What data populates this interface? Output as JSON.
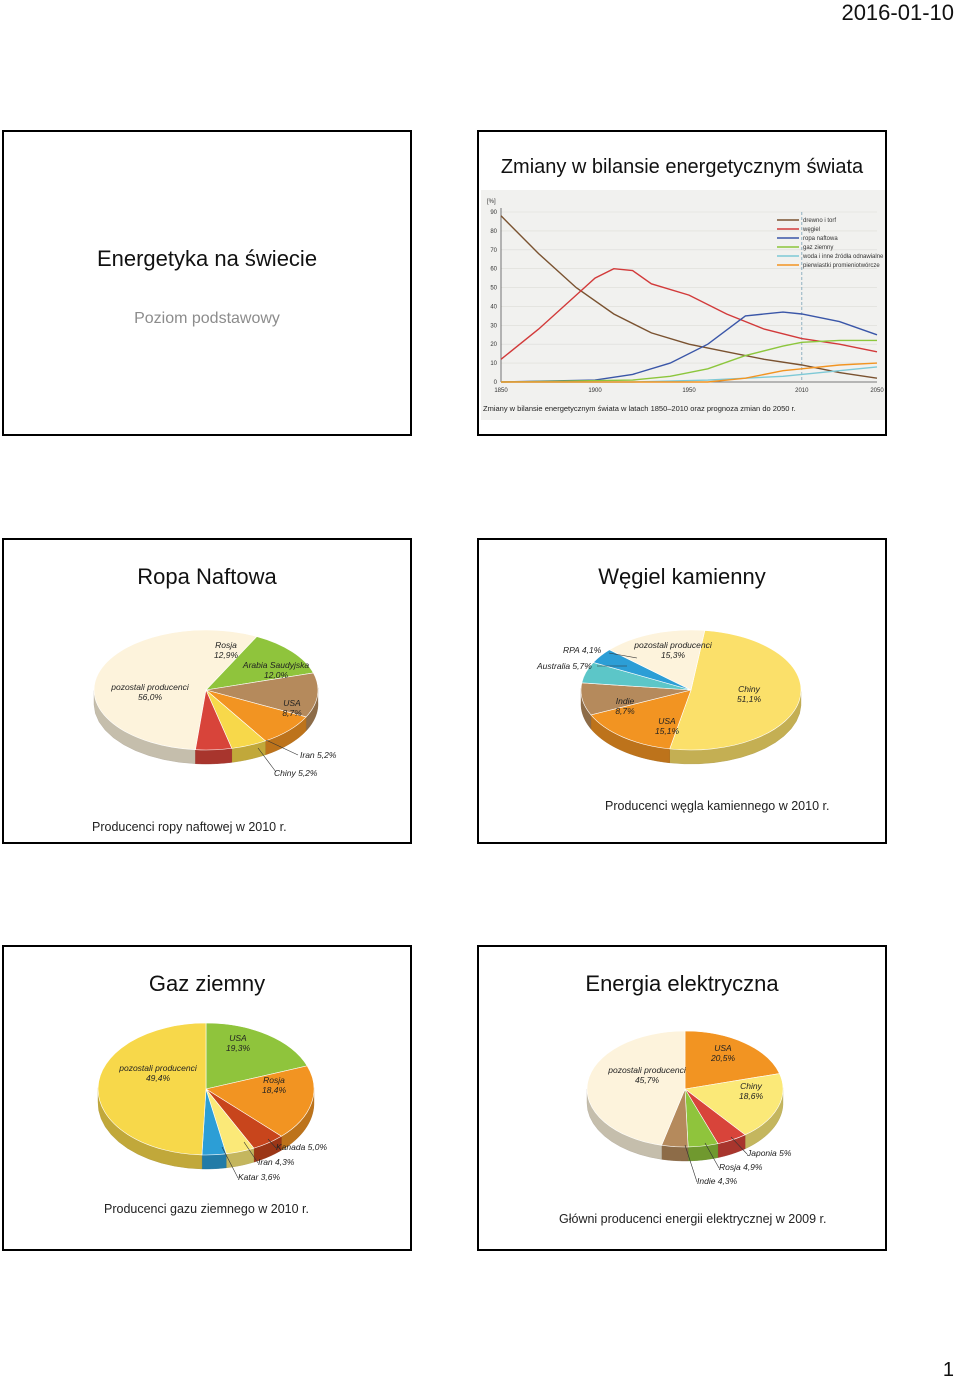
{
  "header": {
    "date": "2016-01-10"
  },
  "footer": {
    "page_number": "1"
  },
  "colors": {
    "yellow": "#f7d84a",
    "orange": "#f29422",
    "green": "#9ccc3c",
    "brown": "#b58a5c",
    "red": "#d8443a",
    "darkred": "#8a1a1a",
    "blue": "#2c9ed6",
    "cream": "#fdf3dc",
    "teal": "#5cc6c8",
    "lightyellow": "#fbe978",
    "darkorange": "#e5621a"
  },
  "slides": {
    "title": {
      "title": "Energetyka na świecie",
      "subtitle": "Poziom podstawowy"
    },
    "energy_mix": {
      "title": "Zmiany w bilansie energetycznym świata",
      "caption": "Zmiany w bilansie energetycznym świata w latach 1850–2010 oraz prognoza zmian do 2050 r."
    },
    "oil": {
      "title": "Ropa Naftowa",
      "caption": "Producenci ropy naftowej w 2010 r."
    },
    "coal": {
      "title": "Węgiel kamienny",
      "caption": "Producenci węgla kamiennego w 2010 r."
    },
    "gas": {
      "title": "Gaz ziemny",
      "caption": "Producenci gazu ziemnego w 2010 r."
    },
    "electricity": {
      "title": "Energia elektryczna",
      "caption": "Główni producenci energii elektrycznej w 2009 r."
    }
  },
  "chart_data": [
    {
      "type": "line",
      "ylabel": "[%]",
      "xlim": [
        1850,
        2050
      ],
      "ylim": [
        0,
        90
      ],
      "x_ticks": [
        "1850",
        "1900",
        "1950",
        "2010",
        "2050"
      ],
      "y_ticks": [
        "0",
        "10",
        "20",
        "30",
        "40",
        "50",
        "60",
        "70",
        "80",
        "90"
      ],
      "legend_position": "top-right",
      "forecast_from": 2010,
      "series": [
        {
          "name": "drewno i torf",
          "color": "#7a5230",
          "x": [
            1850,
            1870,
            1890,
            1910,
            1930,
            1950,
            1970,
            1990,
            2010,
            2030,
            2050
          ],
          "y": [
            88,
            68,
            50,
            36,
            26,
            20,
            16,
            12,
            9,
            5,
            2
          ]
        },
        {
          "name": "węgiel",
          "color": "#d23a3a",
          "x": [
            1850,
            1870,
            1890,
            1900,
            1910,
            1920,
            1930,
            1950,
            1970,
            1990,
            2010,
            2030,
            2050
          ],
          "y": [
            12,
            28,
            46,
            55,
            60,
            59,
            52,
            46,
            36,
            28,
            23,
            20,
            16
          ]
        },
        {
          "name": "ropa naftowa",
          "color": "#3a56a8",
          "x": [
            1850,
            1900,
            1920,
            1940,
            1960,
            1980,
            2000,
            2010,
            2030,
            2050
          ],
          "y": [
            0,
            1,
            4,
            10,
            20,
            35,
            37,
            36,
            32,
            25
          ]
        },
        {
          "name": "gaz ziemny",
          "color": "#8cc63c",
          "x": [
            1850,
            1920,
            1940,
            1960,
            1980,
            2000,
            2010,
            2030,
            2050
          ],
          "y": [
            0,
            1,
            3,
            7,
            14,
            19,
            21,
            22,
            22
          ]
        },
        {
          "name": "woda i inne źródła odnawialne",
          "color": "#7ec9d6",
          "x": [
            1850,
            1920,
            1960,
            2000,
            2010,
            2030,
            2050
          ],
          "y": [
            0,
            0,
            1,
            3,
            4,
            6,
            8
          ]
        },
        {
          "name": "pierwiastki promieniotwórcze",
          "color": "#f29422",
          "x": [
            1850,
            1960,
            1980,
            2000,
            2010,
            2030,
            2050
          ],
          "y": [
            0,
            0,
            2,
            6,
            7,
            9,
            10
          ]
        }
      ]
    },
    {
      "type": "pie",
      "title": "Producenci ropy naftowej w 2010 r.",
      "slices": [
        {
          "label": "pozostali producenci",
          "value": 56.0,
          "display": "56,0%",
          "color": "#fdf3dc"
        },
        {
          "label": "Rosja",
          "value": 12.9,
          "display": "12,9%",
          "color": "#8fc43c"
        },
        {
          "label": "Arabia Saudyjska",
          "value": 12.0,
          "display": "12,0%",
          "color": "#b58a5c"
        },
        {
          "label": "USA",
          "value": 8.7,
          "display": "8,7%",
          "color": "#f29422"
        },
        {
          "label": "Iran",
          "value": 5.2,
          "display": "5,2%",
          "color": "#f7d84a"
        },
        {
          "label": "Chiny",
          "value": 5.2,
          "display": "5,2%",
          "color": "#d8443a"
        }
      ]
    },
    {
      "type": "pie",
      "title": "Producenci węgla kamiennego w 2010 r.",
      "slices": [
        {
          "label": "Chiny",
          "value": 51.1,
          "display": "51,1%",
          "color": "#fbe06a"
        },
        {
          "label": "USA",
          "value": 15.1,
          "display": "15,1%",
          "color": "#f29422"
        },
        {
          "label": "Indie",
          "value": 8.7,
          "display": "8,7%",
          "color": "#b58a5c"
        },
        {
          "label": "Australia",
          "value": 5.7,
          "display": "5,7%",
          "color": "#5cc6c8"
        },
        {
          "label": "RPA",
          "value": 4.1,
          "display": "4,1%",
          "color": "#2c9ed6"
        },
        {
          "label": "pozostali producenci",
          "value": 15.3,
          "display": "15,3%",
          "color": "#fdf3dc"
        }
      ]
    },
    {
      "type": "pie",
      "title": "Producenci gazu ziemnego w 2010 r.",
      "slices": [
        {
          "label": "USA",
          "value": 19.3,
          "display": "19,3%",
          "color": "#8fc43c"
        },
        {
          "label": "Rosja",
          "value": 18.4,
          "display": "18,4%",
          "color": "#f29422"
        },
        {
          "label": "Kanada",
          "value": 5.0,
          "display": "5,0%",
          "color": "#c8451c"
        },
        {
          "label": "Iran",
          "value": 4.3,
          "display": "4,3%",
          "color": "#fbe978"
        },
        {
          "label": "Katar",
          "value": 3.6,
          "display": "3,6%",
          "color": "#2c9ed6"
        },
        {
          "label": "pozostali producenci",
          "value": 49.4,
          "display": "49,4%",
          "color": "#f7d84a"
        }
      ]
    },
    {
      "type": "pie",
      "title": "Główni producenci energii elektrycznej w 2009 r.",
      "slices": [
        {
          "label": "USA",
          "value": 20.5,
          "display": "20,5%",
          "color": "#f29422"
        },
        {
          "label": "Chiny",
          "value": 18.6,
          "display": "18,6%",
          "color": "#fbe978"
        },
        {
          "label": "Japonia",
          "value": 5.0,
          "display": "5%",
          "color": "#d8443a"
        },
        {
          "label": "Rosja",
          "value": 4.9,
          "display": "4,9%",
          "color": "#8fc43c"
        },
        {
          "label": "Indie",
          "value": 4.3,
          "display": "4,3%",
          "color": "#b58a5c"
        },
        {
          "label": "pozostali producenci",
          "value": 45.7,
          "display": "45,7%",
          "color": "#fdf3dc"
        }
      ]
    }
  ]
}
